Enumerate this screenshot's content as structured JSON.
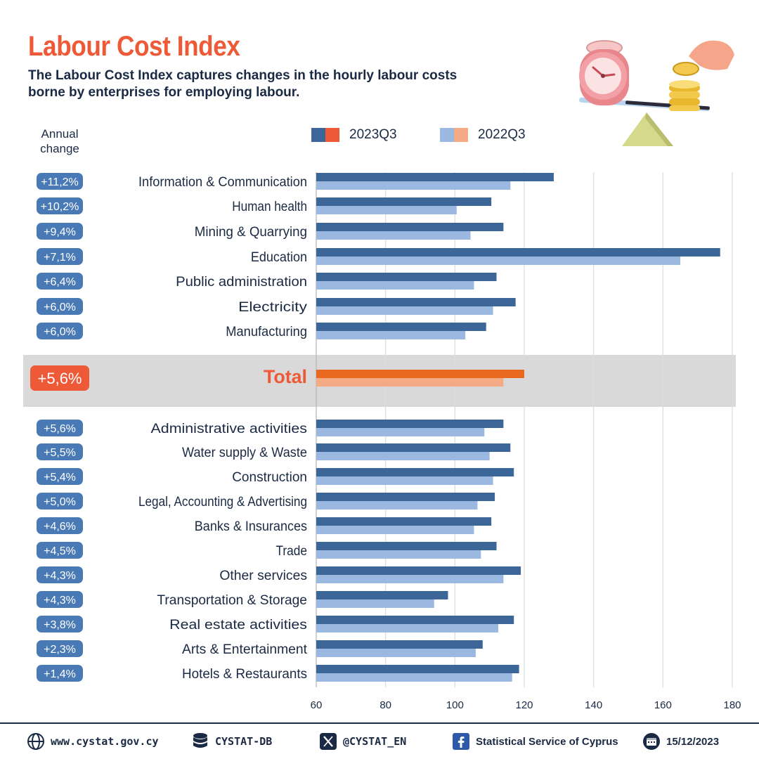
{
  "header": {
    "title": "Labour Cost Index",
    "subtitle": "The Labour Cost Index captures changes in the hourly labour costs borne by enterprises for employing labour."
  },
  "annual_change_label": "Annual change",
  "legend": [
    {
      "label": "2023Q3",
      "colors": [
        "#3c6698",
        "#ee5a37"
      ]
    },
    {
      "label": "2022Q3",
      "colors": [
        "#9bb9e0",
        "#f4ab85"
      ]
    }
  ],
  "footer": {
    "website": "www.cystat.gov.cy",
    "database": "CYSTAT-DB",
    "x_handle": "@CYSTAT_EN",
    "facebook": "Statistical Service of Cyprus",
    "date": "15/12/2023"
  },
  "colors": {
    "bar_2023": "#3c6698",
    "bar_2022": "#9bb9e0",
    "total_2023": "#e8691f",
    "total_2022": "#f4ab85",
    "badge": "#4a7ab5",
    "total_badge": "#ee5a37",
    "title": "#ee5a37"
  },
  "chart_data": {
    "type": "bar",
    "orientation": "horizontal",
    "categories": [
      "Information & Communication",
      "Human health",
      "Mining & Quarrying",
      "Education",
      "Public administration",
      "Electricity",
      "Manufacturing",
      "Total",
      "Administrative activities",
      "Water supply & Waste",
      "Construction",
      "Legal, Accounting & Advertising",
      "Banks & Insurances",
      "Trade",
      "Other services",
      "Transportation & Storage",
      "Real estate activities",
      "Arts & Entertainment",
      "Hotels & Restaurants"
    ],
    "annual_change": [
      "+11,2%",
      "+10,2%",
      "+9,4%",
      "+7,1%",
      "+6,4%",
      "+6,0%",
      "+6,0%",
      "+5,6%",
      "+5,6%",
      "+5,5%",
      "+5,4%",
      "+5,0%",
      "+4,6%",
      "+4,5%",
      "+4,3%",
      "+4,3%",
      "+3,8%",
      "+2,3%",
      "+1,4%"
    ],
    "series": [
      {
        "name": "2023Q3",
        "values": [
          128.5,
          110.5,
          114,
          176.5,
          112,
          117.5,
          109,
          120,
          114,
          116,
          117,
          111.5,
          110.5,
          112,
          119,
          98,
          117,
          108,
          118.5
        ]
      },
      {
        "name": "2022Q3",
        "values": [
          116,
          100.5,
          104.5,
          165,
          105.5,
          111,
          103,
          114,
          108.5,
          110,
          111,
          106.5,
          105.5,
          107.5,
          114,
          94,
          112.5,
          106,
          116.5
        ]
      }
    ],
    "x_ticks": [
      "60",
      "80",
      "100",
      "120",
      "140",
      "160",
      "180"
    ],
    "xlim": [
      60,
      180
    ],
    "grid": true,
    "legend_position": "top"
  }
}
